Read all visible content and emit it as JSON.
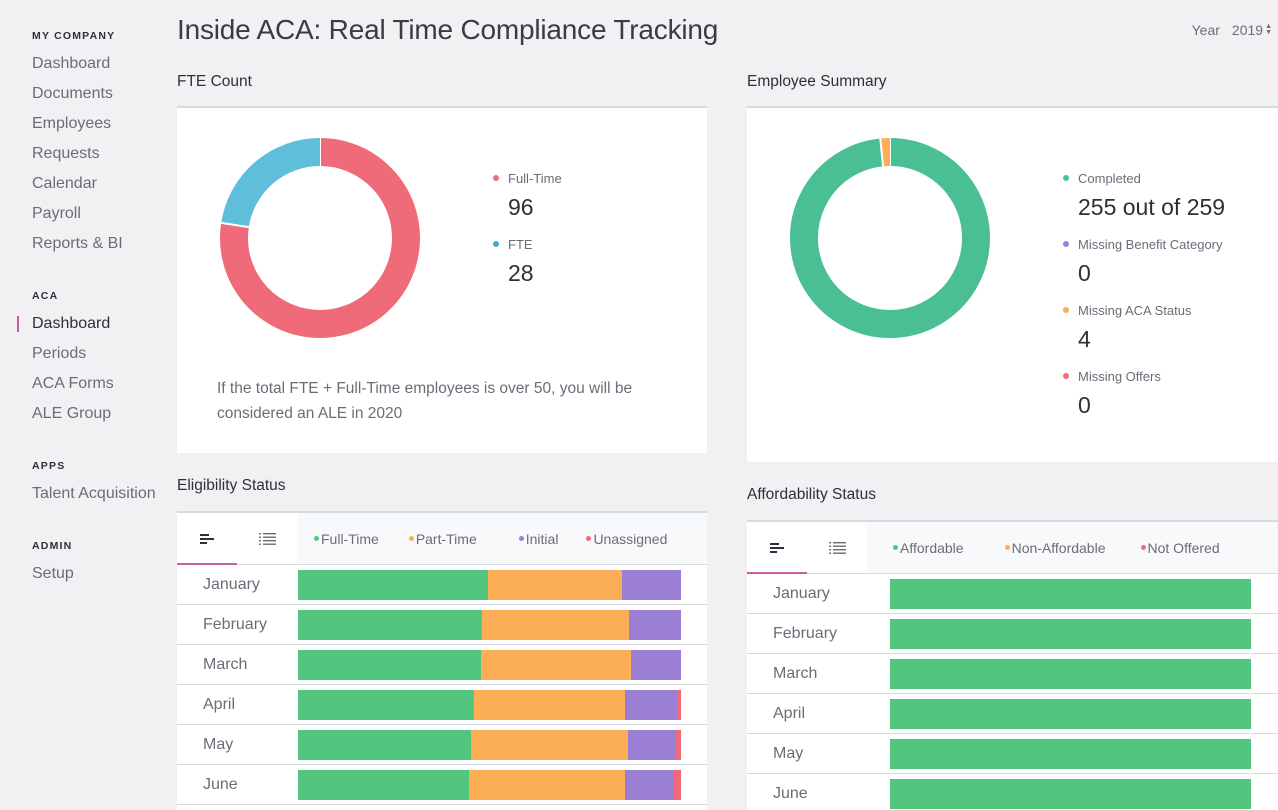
{
  "sidebar": {
    "sections": [
      {
        "heading": "MY COMPANY",
        "items": [
          "Dashboard",
          "Documents",
          "Employees",
          "Requests",
          "Calendar",
          "Payroll",
          "Reports & BI"
        ]
      },
      {
        "heading": "ACA",
        "items": [
          "Dashboard",
          "Periods",
          "ACA Forms",
          "ALE Group"
        ],
        "active_index": 0
      },
      {
        "heading": "APPS",
        "items": [
          "Talent Acquisition"
        ]
      },
      {
        "heading": "ADMIN",
        "items": [
          "Setup"
        ]
      }
    ]
  },
  "header": {
    "title": "Inside ACA: Real Time Compliance Tracking",
    "year_label": "Year",
    "year_value": "2019",
    "year_icon": "sort-updown-icon"
  },
  "fte_count": {
    "title": "FTE Count",
    "legend": [
      {
        "label": "Full-Time",
        "value": "96",
        "color": "#f06b7a"
      },
      {
        "label": "FTE",
        "value": "28",
        "color": "#5fbfdb"
      }
    ],
    "note": "If the total FTE + Full-Time employees is over 50, you will be considered an ALE in 2020"
  },
  "employee_summary": {
    "title": "Employee Summary",
    "legend": [
      {
        "label": "Completed",
        "value": "255 out of 259",
        "color": "#4bbf94"
      },
      {
        "label": "Missing Benefit Category",
        "value": "0",
        "color": "#9b7fd4"
      },
      {
        "label": "Missing ACA Status",
        "value": "4",
        "color": "#fbae56"
      },
      {
        "label": "Missing Offers",
        "value": "0",
        "color": "#f06b7a"
      }
    ]
  },
  "eligibility": {
    "title": "Eligibility Status",
    "view_tabs": [
      {
        "icon": "bar-chart-icon",
        "active": true
      },
      {
        "icon": "list-icon",
        "active": false
      }
    ],
    "legend": [
      {
        "label": "Full-Time",
        "color": "#52c67f"
      },
      {
        "label": "Part-Time",
        "color": "#fbae56"
      },
      {
        "label": "Initial",
        "color": "#9b7fd4"
      },
      {
        "label": "Unassigned",
        "color": "#f06b7a"
      }
    ]
  },
  "affordability": {
    "title": "Affordability Status",
    "view_tabs": [
      {
        "icon": "bar-chart-icon",
        "active": true
      },
      {
        "icon": "list-icon",
        "active": false
      }
    ],
    "legend": [
      {
        "label": "Affordable",
        "color": "#52c67f"
      },
      {
        "label": "Non-Affordable",
        "color": "#fbae56"
      },
      {
        "label": "Not Offered",
        "color": "#f06b7a"
      }
    ]
  },
  "chart_data": [
    {
      "type": "pie",
      "title": "FTE Count",
      "donut": true,
      "categories": [
        "Full-Time",
        "FTE"
      ],
      "values": [
        96,
        28
      ],
      "colors": [
        "#f06b7a",
        "#5fbfdb"
      ]
    },
    {
      "type": "pie",
      "title": "Employee Summary",
      "donut": true,
      "categories": [
        "Completed",
        "Missing Benefit Category",
        "Missing ACA Status",
        "Missing Offers"
      ],
      "values": [
        255,
        0,
        4,
        0
      ],
      "colors": [
        "#4bbf94",
        "#9b7fd4",
        "#fbae56",
        "#f06b7a"
      ]
    },
    {
      "type": "bar",
      "stacked": true,
      "orientation": "horizontal",
      "title": "Eligibility Status",
      "unit": "percent",
      "categories": [
        "January",
        "February",
        "March",
        "April",
        "May",
        "June"
      ],
      "series": [
        {
          "name": "Full-Time",
          "color": "#52c67f",
          "values": [
            49.6,
            48.0,
            47.8,
            46.0,
            45.2,
            44.6
          ]
        },
        {
          "name": "Part-Time",
          "color": "#fbae56",
          "values": [
            35.0,
            38.4,
            39.2,
            39.4,
            41.0,
            40.7
          ]
        },
        {
          "name": "Initial",
          "color": "#9b7fd4",
          "values": [
            15.4,
            13.6,
            13.0,
            13.6,
            12.5,
            12.8
          ]
        },
        {
          "name": "Unassigned",
          "color": "#f06b7a",
          "values": [
            0,
            0,
            0,
            1.0,
            1.3,
            1.9
          ]
        }
      ]
    },
    {
      "type": "bar",
      "stacked": true,
      "orientation": "horizontal",
      "title": "Affordability Status",
      "unit": "percent",
      "categories": [
        "January",
        "February",
        "March",
        "April",
        "May",
        "June"
      ],
      "series": [
        {
          "name": "Affordable",
          "color": "#52c67f",
          "values": [
            100,
            100,
            100,
            100,
            100,
            100
          ]
        },
        {
          "name": "Non-Affordable",
          "color": "#fbae56",
          "values": [
            0,
            0,
            0,
            0,
            0,
            0
          ]
        },
        {
          "name": "Not Offered",
          "color": "#f06b7a",
          "values": [
            0,
            0,
            0,
            0,
            0,
            0
          ]
        }
      ]
    }
  ]
}
